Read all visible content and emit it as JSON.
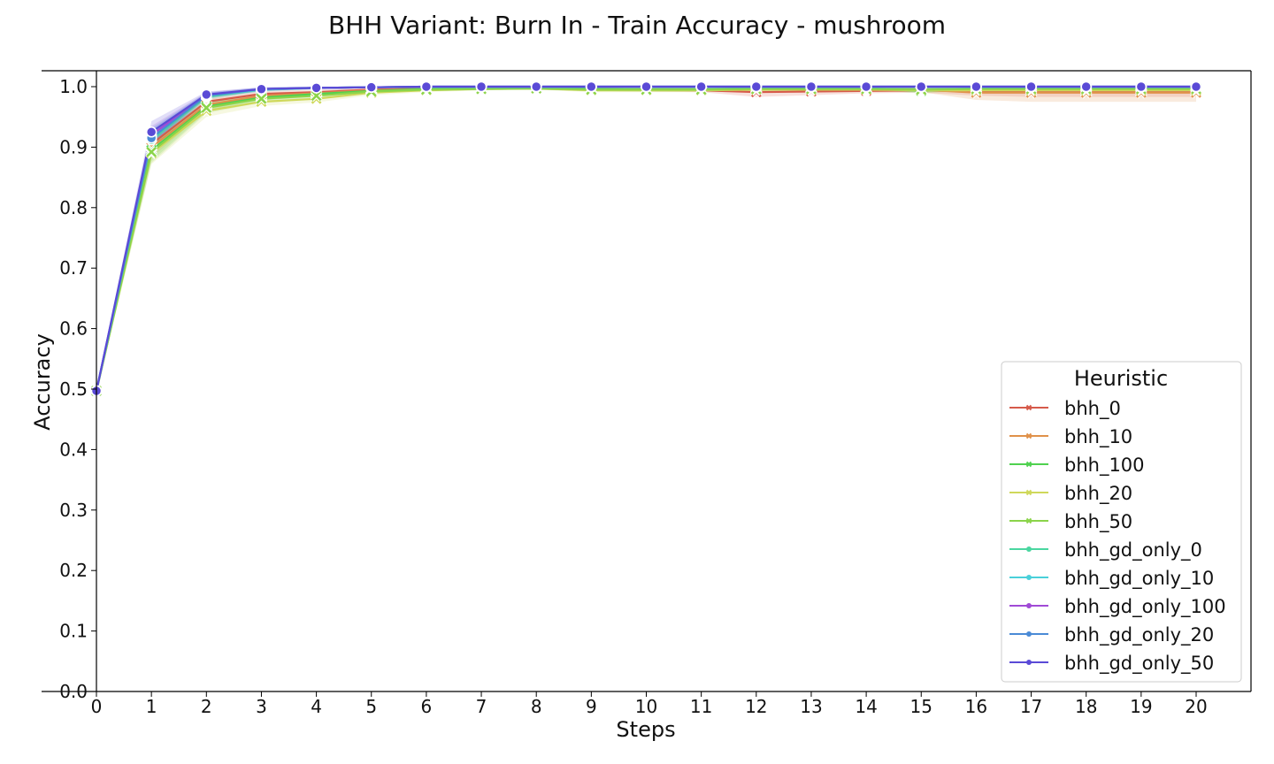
{
  "chart_data": {
    "type": "line",
    "title": "BHH Variant: Burn In - Train Accuracy - mushroom",
    "xlabel": "Steps",
    "ylabel": "Accuracy",
    "xlim": [
      0,
      20
    ],
    "ylim": [
      0,
      1.0
    ],
    "xticks": [
      0,
      1,
      2,
      3,
      4,
      5,
      6,
      7,
      8,
      9,
      10,
      11,
      12,
      13,
      14,
      15,
      16,
      17,
      18,
      19,
      20
    ],
    "yticks": [
      0.0,
      0.1,
      0.2,
      0.3,
      0.4,
      0.5,
      0.6,
      0.7,
      0.8,
      0.9,
      1.0
    ],
    "ytick_labels": [
      "0.0",
      "0.1",
      "0.2",
      "0.3",
      "0.4",
      "0.5",
      "0.6",
      "0.7",
      "0.8",
      "0.9",
      "1.0"
    ],
    "grid": false,
    "legend": {
      "title": "Heuristic",
      "position": "lower-right"
    },
    "x": [
      0,
      1,
      2,
      3,
      4,
      5,
      6,
      7,
      8,
      9,
      10,
      11,
      12,
      13,
      14,
      15,
      16,
      17,
      18,
      19,
      20
    ],
    "series": [
      {
        "name": "bhh_0",
        "color": "#d65a4a",
        "marker": "x",
        "values": [
          0.497,
          0.905,
          0.975,
          0.988,
          0.991,
          0.995,
          0.997,
          0.997,
          0.997,
          0.996,
          0.995,
          0.994,
          0.991,
          0.992,
          0.993,
          0.994,
          0.992,
          0.991,
          0.991,
          0.991,
          0.991
        ],
        "band": [
          0.004,
          0.018,
          0.008,
          0.005,
          0.004,
          0.003,
          0.002,
          0.002,
          0.002,
          0.003,
          0.003,
          0.003,
          0.008,
          0.006,
          0.004,
          0.004,
          0.007,
          0.008,
          0.008,
          0.008,
          0.008
        ]
      },
      {
        "name": "bhh_10",
        "color": "#e0914a",
        "marker": "x",
        "values": [
          0.497,
          0.9,
          0.97,
          0.985,
          0.989,
          0.994,
          0.996,
          0.997,
          0.997,
          0.996,
          0.995,
          0.995,
          0.995,
          0.995,
          0.995,
          0.995,
          0.99,
          0.99,
          0.99,
          0.99,
          0.99
        ],
        "band": [
          0.004,
          0.018,
          0.009,
          0.005,
          0.004,
          0.003,
          0.002,
          0.002,
          0.002,
          0.003,
          0.003,
          0.003,
          0.004,
          0.004,
          0.004,
          0.004,
          0.012,
          0.015,
          0.015,
          0.015,
          0.015
        ]
      },
      {
        "name": "bhh_100",
        "color": "#4fd14f",
        "marker": "x",
        "values": [
          0.497,
          0.895,
          0.967,
          0.982,
          0.988,
          0.993,
          0.996,
          0.997,
          0.998,
          0.996,
          0.995,
          0.995,
          0.997,
          0.997,
          0.997,
          0.993,
          0.997,
          0.997,
          0.998,
          0.998,
          0.998
        ],
        "band": [
          0.004,
          0.018,
          0.009,
          0.005,
          0.004,
          0.003,
          0.002,
          0.002,
          0.002,
          0.003,
          0.003,
          0.003,
          0.002,
          0.002,
          0.002,
          0.004,
          0.002,
          0.002,
          0.002,
          0.002,
          0.002
        ]
      },
      {
        "name": "bhh_20",
        "color": "#cfd85a",
        "marker": "x",
        "values": [
          0.497,
          0.89,
          0.96,
          0.975,
          0.98,
          0.99,
          0.994,
          0.996,
          0.997,
          0.994,
          0.994,
          0.994,
          0.995,
          0.995,
          0.995,
          0.994,
          0.994,
          0.994,
          0.994,
          0.994,
          0.994
        ],
        "band": [
          0.004,
          0.018,
          0.01,
          0.007,
          0.006,
          0.004,
          0.003,
          0.002,
          0.002,
          0.003,
          0.003,
          0.003,
          0.003,
          0.003,
          0.003,
          0.003,
          0.004,
          0.004,
          0.004,
          0.004,
          0.004
        ]
      },
      {
        "name": "bhh_50",
        "color": "#8bd44a",
        "marker": "x",
        "values": [
          0.497,
          0.892,
          0.965,
          0.98,
          0.985,
          0.992,
          0.995,
          0.996,
          0.997,
          0.995,
          0.995,
          0.995,
          0.996,
          0.996,
          0.996,
          0.995,
          0.996,
          0.996,
          0.996,
          0.996,
          0.996
        ],
        "band": [
          0.004,
          0.018,
          0.009,
          0.006,
          0.005,
          0.003,
          0.002,
          0.002,
          0.002,
          0.003,
          0.003,
          0.003,
          0.003,
          0.003,
          0.003,
          0.003,
          0.003,
          0.003,
          0.003,
          0.003,
          0.003
        ]
      },
      {
        "name": "bhh_gd_only_0",
        "color": "#4ad6a0",
        "marker": "o",
        "values": [
          0.497,
          0.912,
          0.983,
          0.995,
          0.998,
          0.999,
          0.999,
          0.999,
          0.999,
          0.999,
          0.999,
          0.999,
          0.999,
          0.999,
          0.999,
          0.999,
          0.999,
          0.999,
          0.999,
          0.999,
          0.999
        ],
        "band": [
          0.004,
          0.014,
          0.005,
          0.003,
          0.002,
          0.001,
          0.001,
          0.001,
          0.001,
          0.001,
          0.001,
          0.001,
          0.001,
          0.001,
          0.001,
          0.001,
          0.001,
          0.001,
          0.001,
          0.001,
          0.001
        ]
      },
      {
        "name": "bhh_gd_only_10",
        "color": "#4ad0da",
        "marker": "o",
        "values": [
          0.497,
          0.918,
          0.985,
          0.995,
          0.998,
          0.999,
          1.0,
          1.0,
          1.0,
          1.0,
          1.0,
          1.0,
          1.0,
          1.0,
          1.0,
          1.0,
          1.0,
          1.0,
          1.0,
          1.0,
          1.0
        ],
        "band": [
          0.004,
          0.014,
          0.005,
          0.003,
          0.002,
          0.001,
          0.001,
          0.001,
          0.001,
          0.001,
          0.001,
          0.001,
          0.001,
          0.001,
          0.001,
          0.001,
          0.001,
          0.001,
          0.001,
          0.001,
          0.001
        ]
      },
      {
        "name": "bhh_gd_only_100",
        "color": "#a04ad6",
        "marker": "o",
        "values": [
          0.497,
          0.92,
          0.986,
          0.996,
          0.998,
          0.999,
          1.0,
          1.0,
          1.0,
          1.0,
          1.0,
          1.0,
          1.0,
          1.0,
          1.0,
          1.0,
          1.0,
          1.0,
          1.0,
          1.0,
          1.0
        ],
        "band": [
          0.004,
          0.015,
          0.005,
          0.003,
          0.002,
          0.001,
          0.001,
          0.001,
          0.001,
          0.001,
          0.001,
          0.001,
          0.001,
          0.001,
          0.001,
          0.001,
          0.001,
          0.001,
          0.001,
          0.001,
          0.001
        ]
      },
      {
        "name": "bhh_gd_only_20",
        "color": "#4a8ad6",
        "marker": "o",
        "values": [
          0.497,
          0.915,
          0.985,
          0.996,
          0.998,
          0.999,
          1.0,
          1.0,
          1.0,
          1.0,
          1.0,
          1.0,
          1.0,
          1.0,
          1.0,
          1.0,
          1.0,
          1.0,
          1.0,
          1.0,
          1.0
        ],
        "band": [
          0.004,
          0.015,
          0.005,
          0.003,
          0.002,
          0.001,
          0.001,
          0.001,
          0.001,
          0.001,
          0.001,
          0.001,
          0.001,
          0.001,
          0.001,
          0.001,
          0.001,
          0.001,
          0.001,
          0.001,
          0.001
        ]
      },
      {
        "name": "bhh_gd_only_50",
        "color": "#5a4ad6",
        "marker": "o",
        "values": [
          0.497,
          0.925,
          0.987,
          0.996,
          0.998,
          0.999,
          1.0,
          1.0,
          1.0,
          1.0,
          1.0,
          1.0,
          1.0,
          1.0,
          1.0,
          1.0,
          1.0,
          1.0,
          1.0,
          1.0,
          1.0
        ],
        "band": [
          0.004,
          0.018,
          0.005,
          0.003,
          0.002,
          0.001,
          0.001,
          0.001,
          0.001,
          0.001,
          0.001,
          0.001,
          0.001,
          0.001,
          0.001,
          0.001,
          0.001,
          0.001,
          0.001,
          0.001,
          0.001
        ]
      }
    ]
  }
}
